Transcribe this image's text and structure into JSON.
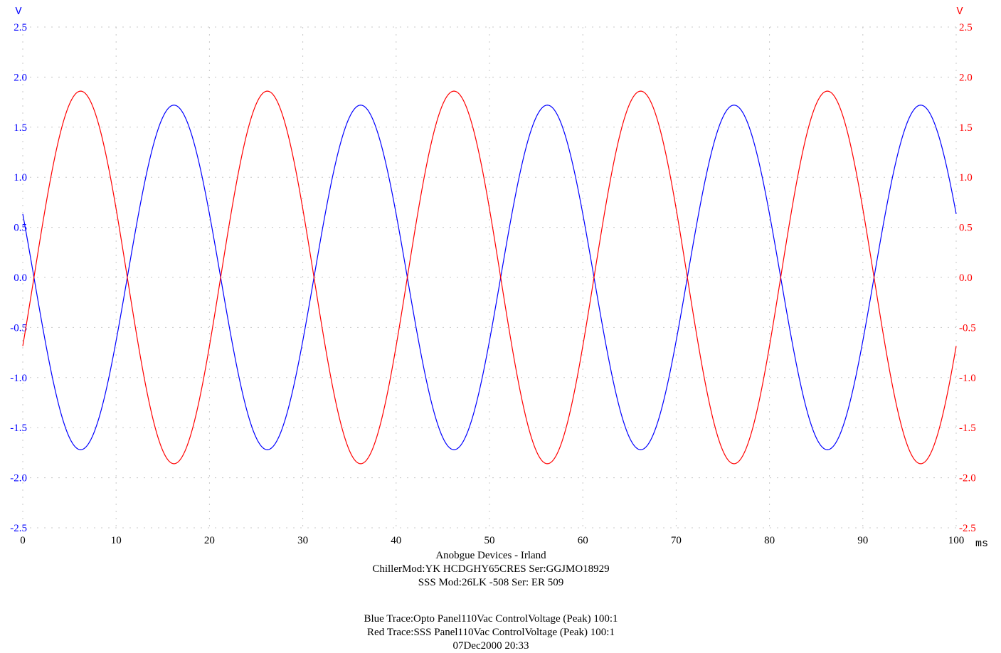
{
  "chart_data": {
    "type": "line",
    "title": "",
    "xlabel": "ms",
    "ylabel_left": "V",
    "ylabel_right": "V",
    "xlim": [
      0,
      100
    ],
    "ylim": [
      -2.5,
      2.5
    ],
    "grid": true,
    "x_ticks": [
      "0",
      "10",
      "20",
      "30",
      "40",
      "50",
      "60",
      "70",
      "80",
      "90",
      "100"
    ],
    "y_ticks": [
      "2.5",
      "2.0",
      "1.5",
      "1.0",
      "0.5",
      "0.0",
      "-0.5",
      "-1.0",
      "-1.5",
      "-2.0",
      "-2.5"
    ],
    "colors": {
      "blue": "#0000ff",
      "red": "#ff0000",
      "grid": "#c8c8c8"
    },
    "series": [
      {
        "color": "#0000ff",
        "axis": "left",
        "waveform": "sine",
        "amplitude": 1.72,
        "period_ms": 20.0,
        "first_peak_ms": 16.2,
        "peaks": [
          [
            16.2,
            1.72
          ],
          [
            36.2,
            1.72
          ],
          [
            56.2,
            1.72
          ],
          [
            76.2,
            1.72
          ],
          [
            96.2,
            1.72
          ]
        ],
        "troughs": [
          [
            6.2,
            -1.72
          ],
          [
            26.2,
            -1.72
          ],
          [
            46.2,
            -1.72
          ],
          [
            66.2,
            -1.72
          ],
          [
            86.2,
            -1.72
          ]
        ],
        "start": [
          0,
          0.6
        ],
        "end": [
          100,
          0.65
        ]
      },
      {
        "color": "#ff0000",
        "axis": "right",
        "waveform": "sine",
        "amplitude": 1.86,
        "period_ms": 20.0,
        "first_peak_ms": 6.2,
        "peaks": [
          [
            6.2,
            1.86
          ],
          [
            26.2,
            1.86
          ],
          [
            46.2,
            1.86
          ],
          [
            66.2,
            1.86
          ],
          [
            86.2,
            1.86
          ]
        ],
        "troughs": [
          [
            16.2,
            -1.86
          ],
          [
            36.2,
            -1.86
          ],
          [
            56.2,
            -1.86
          ],
          [
            76.2,
            -1.86
          ],
          [
            96.2,
            -1.86
          ]
        ],
        "start": [
          0,
          -0.65
        ],
        "end": [
          100,
          -0.62
        ]
      }
    ]
  },
  "caption": {
    "line1": "Anobgue Devices - Irland",
    "line2": "ChillerMod:YK HCDGHY65CRES Ser:GGJMO18929",
    "line3": "SSS Mod:26LK -508 Ser: ER 509",
    "line4": "Blue Trace:Opto Panel110Vac ControlVoltage (Peak) 100:1",
    "line5": "Red Trace:SSS Panel110Vac ControlVoltage (Peak) 100:1",
    "line6": "07Dec2000 20:33"
  }
}
